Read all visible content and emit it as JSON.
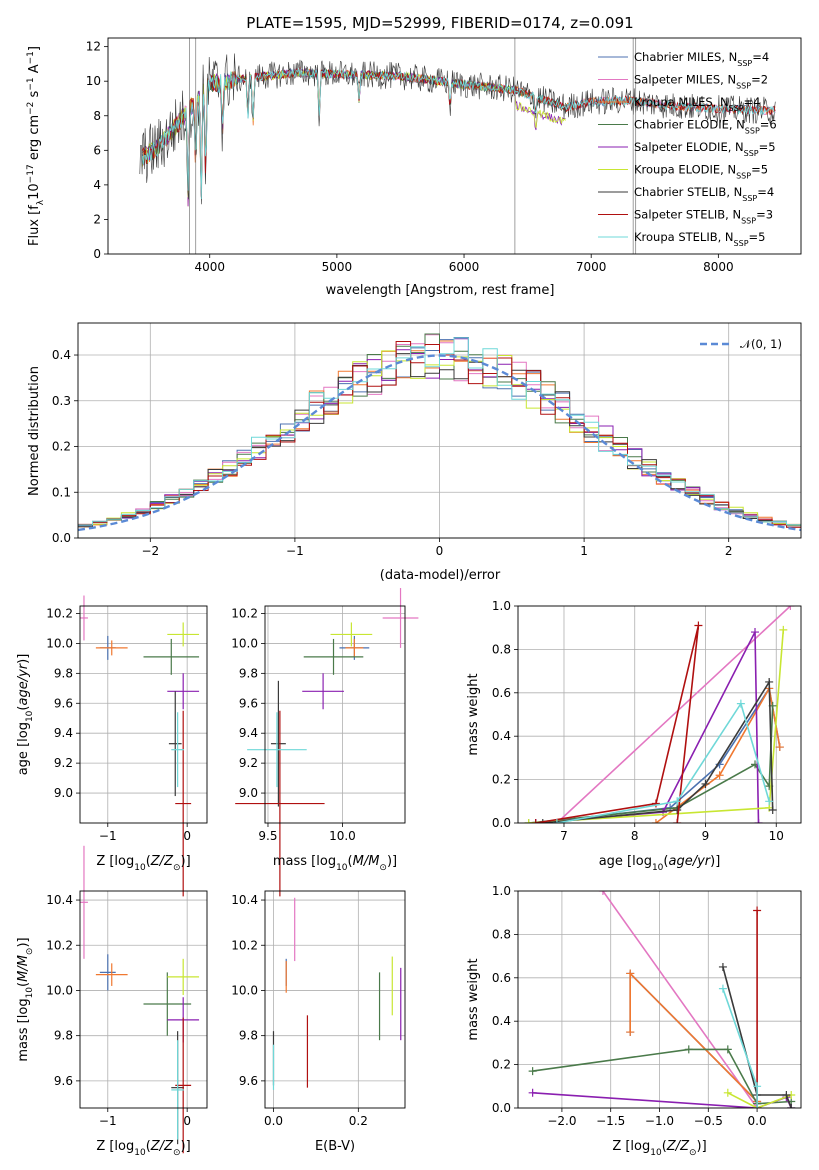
{
  "title": "PLATE=1595, MJD=52999, FIBERID=0174, z=0.091",
  "models": [
    {
      "label": "Chabrier MILES, N",
      "sub": "SSP",
      "suffix": "=4",
      "color": "#4c72b0"
    },
    {
      "label": "Salpeter MILES, N",
      "sub": "SSP",
      "suffix": "=2",
      "color": "#e377c2"
    },
    {
      "label": "Kroupa MILES, N",
      "sub": "SSP",
      "suffix": "=4",
      "color": "#f07830"
    },
    {
      "label": "Chabrier ELODIE, N",
      "sub": "SSP",
      "suffix": "=6",
      "color": "#4a7a4a"
    },
    {
      "label": "Salpeter ELODIE, N",
      "sub": "SSP",
      "suffix": "=5",
      "color": "#8a1fb0"
    },
    {
      "label": "Kroupa ELODIE, N",
      "sub": "SSP",
      "suffix": "=5",
      "color": "#c8e632"
    },
    {
      "label": "Chabrier STELIB, N",
      "sub": "SSP",
      "suffix": "=4",
      "color": "#3a3a3a"
    },
    {
      "label": "Salpeter STELIB, N",
      "sub": "SSP",
      "suffix": "=3",
      "color": "#b01010"
    },
    {
      "label": "Kroupa STELIB, N",
      "sub": "SSP",
      "suffix": "=5",
      "color": "#6fd8d8"
    }
  ],
  "chart_data": [
    {
      "id": "spectrum",
      "type": "line",
      "xlabel": "wavelength [Angstrom, rest frame]",
      "ylabel": "Flux [f_λ 10^-17 erg cm^-2 s^-1 A^-1]",
      "xlim": [
        3200,
        8650
      ],
      "ylim": [
        0,
        12.5
      ],
      "xticks": [
        4000,
        5000,
        6000,
        7000,
        8000
      ],
      "yticks": [
        0,
        2,
        4,
        6,
        8,
        10,
        12
      ],
      "series_envelope": [
        {
          "x": 3450,
          "y": 5.5
        },
        {
          "x": 3600,
          "y": 6.2
        },
        {
          "x": 3800,
          "y": 8.0
        },
        {
          "x": 4000,
          "y": 9.8
        },
        {
          "x": 4300,
          "y": 10.2
        },
        {
          "x": 4700,
          "y": 10.5
        },
        {
          "x": 5000,
          "y": 10.4
        },
        {
          "x": 5500,
          "y": 10.3
        },
        {
          "x": 6000,
          "y": 9.8
        },
        {
          "x": 6400,
          "y": 9.5
        },
        {
          "x": 6800,
          "y": 8.5
        },
        {
          "x": 7000,
          "y": 8.8
        },
        {
          "x": 7300,
          "y": 8.9
        },
        {
          "x": 7600,
          "y": 8.6
        },
        {
          "x": 8000,
          "y": 8.4
        },
        {
          "x": 8400,
          "y": 8.3
        }
      ],
      "grid": false,
      "legend_position": "top-right"
    },
    {
      "id": "residuals",
      "type": "histogram",
      "xlabel": "(data-model)/error",
      "ylabel": "Normed distribution",
      "xlim": [
        -2.5,
        2.5
      ],
      "ylim": [
        0,
        0.47
      ],
      "xticks": [
        -2,
        -1,
        0,
        1,
        2
      ],
      "yticks": [
        0.0,
        0.1,
        0.2,
        0.3,
        0.4
      ],
      "reference": {
        "name": "𝒩(0, 1)",
        "mean": 0,
        "sigma": 1
      },
      "bin_width": 0.1,
      "grid": true,
      "legend_position": "top-right"
    },
    {
      "id": "age-vs-Z",
      "type": "errorbar",
      "xlabel": "Z [log10(Z/Z⊙)]",
      "ylabel": "age [log10(age/yr)]",
      "xlim": [
        -1.35,
        0.25
      ],
      "ylim": [
        8.8,
        10.25
      ],
      "xticks": [
        -1,
        0
      ],
      "yticks": [
        9.0,
        9.2,
        9.4,
        9.6,
        9.8,
        10.0,
        10.2
      ],
      "points": [
        {
          "model": 0,
          "x": -1.0,
          "y": 9.97,
          "xerr": 0.1,
          "yerr": 0.08
        },
        {
          "model": 1,
          "x": -1.3,
          "y": 10.17,
          "xerr": 0.05,
          "yerr": 0.15
        },
        {
          "model": 2,
          "x": -0.95,
          "y": 9.97,
          "xerr": 0.2,
          "yerr": 0.05
        },
        {
          "model": 3,
          "x": -0.2,
          "y": 9.91,
          "xerr": 0.35,
          "yerr": 0.12
        },
        {
          "model": 4,
          "x": -0.05,
          "y": 9.68,
          "xerr": 0.2,
          "yerr": 0.12
        },
        {
          "model": 5,
          "x": -0.05,
          "y": 10.06,
          "xerr": 0.2,
          "yerr": 0.08
        },
        {
          "model": 6,
          "x": -0.15,
          "y": 9.33,
          "xerr": 0.08,
          "yerr": 0.35
        },
        {
          "model": 7,
          "x": -0.05,
          "y": 8.93,
          "xerr": 0.1,
          "yerr": 0.62
        },
        {
          "model": 8,
          "x": -0.12,
          "y": 9.29,
          "xerr": 0.08,
          "yerr": 0.25
        }
      ]
    },
    {
      "id": "age-vs-mass",
      "type": "errorbar",
      "xlabel": "mass [log10(M/M⊙)]",
      "ylabel": "",
      "xlim": [
        9.48,
        10.42
      ],
      "ylim": [
        8.8,
        10.25
      ],
      "xticks": [
        9.5,
        10.0
      ],
      "yticks": [
        9.0,
        9.2,
        9.4,
        9.6,
        9.8,
        10.0,
        10.2
      ],
      "points": [
        {
          "model": 0,
          "x": 10.08,
          "y": 9.97,
          "xerr": 0.1,
          "yerr": 0.08
        },
        {
          "model": 1,
          "x": 10.39,
          "y": 10.17,
          "xerr": 0.12,
          "yerr": 0.2
        },
        {
          "model": 2,
          "x": 10.08,
          "y": 9.97,
          "xerr": 0.06,
          "yerr": 0.06
        },
        {
          "model": 3,
          "x": 9.94,
          "y": 9.91,
          "xerr": 0.2,
          "yerr": 0.12
        },
        {
          "model": 4,
          "x": 9.87,
          "y": 9.68,
          "xerr": 0.14,
          "yerr": 0.12
        },
        {
          "model": 5,
          "x": 10.06,
          "y": 10.06,
          "xerr": 0.14,
          "yerr": 0.08
        },
        {
          "model": 6,
          "x": 9.57,
          "y": 9.33,
          "xerr": 0.05,
          "yerr": 0.42
        },
        {
          "model": 7,
          "x": 9.58,
          "y": 8.93,
          "xerr": 0.3,
          "yerr": 0.62
        },
        {
          "model": 8,
          "x": 9.56,
          "y": 9.29,
          "xerr": 0.2,
          "yerr": 0.25
        }
      ]
    },
    {
      "id": "massweight-vs-age",
      "type": "line",
      "xlabel": "age [log10(age/yr)]",
      "ylabel": "mass weight",
      "xlim": [
        6.35,
        10.35
      ],
      "ylim": [
        0,
        1
      ],
      "xticks": [
        7,
        8,
        9,
        10
      ],
      "yticks": [
        0.0,
        0.2,
        0.4,
        0.6,
        0.8,
        1.0
      ],
      "grid": true,
      "series": [
        {
          "model": 0,
          "points": [
            [
              6.6,
              0.0
            ],
            [
              8.5,
              0.07
            ],
            [
              9.2,
              0.27
            ],
            [
              9.9,
              0.62
            ],
            [
              10.05,
              0.35
            ]
          ]
        },
        {
          "model": 1,
          "points": [
            [
              6.9,
              0.0
            ],
            [
              10.2,
              1.0
            ]
          ]
        },
        {
          "model": 2,
          "points": [
            [
              8.3,
              0.0
            ],
            [
              9.2,
              0.22
            ],
            [
              9.9,
              0.62
            ],
            [
              10.05,
              0.35
            ]
          ]
        },
        {
          "model": 3,
          "points": [
            [
              6.5,
              0.0
            ],
            [
              8.6,
              0.07
            ],
            [
              9.7,
              0.27
            ],
            [
              9.9,
              0.17
            ],
            [
              9.95,
              0.54
            ]
          ]
        },
        {
          "model": 4,
          "points": [
            [
              6.6,
              0.0
            ],
            [
              8.4,
              0.05
            ],
            [
              9.7,
              0.88
            ],
            [
              9.75,
              0.0
            ]
          ]
        },
        {
          "model": 5,
          "points": [
            [
              6.5,
              0.0
            ],
            [
              9.9,
              0.07
            ],
            [
              10.1,
              0.89
            ]
          ]
        },
        {
          "model": 6,
          "points": [
            [
              6.7,
              0.0
            ],
            [
              8.6,
              0.06
            ],
            [
              9.0,
              0.18
            ],
            [
              9.9,
              0.65
            ],
            [
              9.95,
              0.06
            ]
          ]
        },
        {
          "model": 7,
          "points": [
            [
              6.6,
              0.0
            ],
            [
              8.3,
              0.09
            ],
            [
              8.9,
              0.91
            ],
            [
              8.6,
              0.0
            ]
          ]
        },
        {
          "model": 8,
          "points": [
            [
              6.9,
              0.0
            ],
            [
              8.6,
              0.1
            ],
            [
              9.5,
              0.55
            ],
            [
              9.9,
              0.1
            ]
          ]
        }
      ]
    },
    {
      "id": "mass-vs-Z",
      "type": "errorbar",
      "xlabel": "Z [log10(Z/Z⊙)]",
      "ylabel": "mass [log10(M/M⊙)]",
      "xlim": [
        -1.35,
        0.25
      ],
      "ylim": [
        9.48,
        10.44
      ],
      "xticks": [
        -1,
        0
      ],
      "yticks": [
        9.6,
        9.8,
        10.0,
        10.2,
        10.4
      ],
      "points": [
        {
          "model": 0,
          "x": -1.0,
          "y": 10.08,
          "xerr": 0.1,
          "yerr": 0.08
        },
        {
          "model": 1,
          "x": -1.3,
          "y": 10.39,
          "xerr": 0.05,
          "yerr": 0.25
        },
        {
          "model": 2,
          "x": -0.95,
          "y": 10.07,
          "xerr": 0.2,
          "yerr": 0.05
        },
        {
          "model": 3,
          "x": -0.25,
          "y": 9.94,
          "xerr": 0.3,
          "yerr": 0.14
        },
        {
          "model": 4,
          "x": -0.05,
          "y": 9.87,
          "xerr": 0.2,
          "yerr": 0.1
        },
        {
          "model": 5,
          "x": -0.05,
          "y": 10.06,
          "xerr": 0.2,
          "yerr": 0.08
        },
        {
          "model": 6,
          "x": -0.12,
          "y": 9.57,
          "xerr": 0.08,
          "yerr": 0.25
        },
        {
          "model": 7,
          "x": -0.05,
          "y": 9.58,
          "xerr": 0.1,
          "yerr": 0.3
        },
        {
          "model": 8,
          "x": -0.12,
          "y": 9.56,
          "xerr": 0.08,
          "yerr": 0.22
        }
      ]
    },
    {
      "id": "mass-vs-ebv",
      "type": "errorbar",
      "xlabel": "E(B-V)",
      "ylabel": "",
      "xlim": [
        -0.02,
        0.31
      ],
      "ylim": [
        9.48,
        10.44
      ],
      "xticks": [
        0.0,
        0.2
      ],
      "yticks": [
        9.6,
        9.8,
        10.0,
        10.2,
        10.4
      ],
      "points": [
        {
          "model": 0,
          "x": 0.03,
          "y": 10.08,
          "xerr": 0,
          "yerr": 0.06
        },
        {
          "model": 1,
          "x": 0.05,
          "y": 10.27,
          "xerr": 0,
          "yerr": 0.14
        },
        {
          "model": 2,
          "x": 0.03,
          "y": 10.06,
          "xerr": 0,
          "yerr": 0.07
        },
        {
          "model": 3,
          "x": 0.25,
          "y": 9.93,
          "xerr": 0,
          "yerr": 0.15
        },
        {
          "model": 4,
          "x": 0.3,
          "y": 9.94,
          "xerr": 0,
          "yerr": 0.16
        },
        {
          "model": 5,
          "x": 0.28,
          "y": 10.02,
          "xerr": 0,
          "yerr": 0.13
        },
        {
          "model": 6,
          "x": 0.0,
          "y": 9.7,
          "xerr": 0,
          "yerr": 0.12
        },
        {
          "model": 7,
          "x": 0.08,
          "y": 9.73,
          "xerr": 0,
          "yerr": 0.16
        },
        {
          "model": 8,
          "x": 0.0,
          "y": 9.66,
          "xerr": 0,
          "yerr": 0.1
        }
      ]
    },
    {
      "id": "massweight-vs-Z",
      "type": "line",
      "xlabel": "Z [log10(Z/Z⊙)]",
      "ylabel": "mass weight",
      "xlim": [
        -2.45,
        0.45
      ],
      "ylim": [
        0,
        1
      ],
      "xticks": [
        -2.0,
        -1.5,
        -1.0,
        -0.5,
        0.0
      ],
      "yticks": [
        0.0,
        0.2,
        0.4,
        0.6,
        0.8,
        1.0
      ],
      "grid": true,
      "series": [
        {
          "model": 0,
          "points": [
            [
              -1.3,
              0.35
            ],
            [
              -1.3,
              0.62
            ],
            [
              0.0,
              0.03
            ],
            [
              0.0,
              0.0
            ]
          ]
        },
        {
          "model": 1,
          "points": [
            [
              -1.58,
              1.0
            ],
            [
              0.0,
              0.0
            ]
          ]
        },
        {
          "model": 2,
          "points": [
            [
              -1.3,
              0.35
            ],
            [
              -1.3,
              0.62
            ],
            [
              0.0,
              0.03
            ],
            [
              0.0,
              0.0
            ]
          ]
        },
        {
          "model": 3,
          "points": [
            [
              -2.3,
              0.17
            ],
            [
              -0.7,
              0.27
            ],
            [
              -0.3,
              0.27
            ],
            [
              0.0,
              0.02
            ],
            [
              0.35,
              0.03
            ]
          ]
        },
        {
          "model": 4,
          "points": [
            [
              -2.3,
              0.07
            ],
            [
              0.0,
              0.0
            ],
            [
              0.3,
              0.05
            ],
            [
              0.35,
              0.0
            ]
          ]
        },
        {
          "model": 5,
          "points": [
            [
              -0.3,
              0.07
            ],
            [
              0.0,
              0.0
            ],
            [
              0.35,
              0.06
            ]
          ]
        },
        {
          "model": 6,
          "points": [
            [
              -0.35,
              0.65
            ],
            [
              0.0,
              0.06
            ],
            [
              0.3,
              0.06
            ],
            [
              0.35,
              0.0
            ]
          ]
        },
        {
          "model": 7,
          "points": [
            [
              0.0,
              0.0
            ],
            [
              0.0,
              0.91
            ],
            [
              0.0,
              0.0
            ]
          ]
        },
        {
          "model": 8,
          "points": [
            [
              -0.35,
              0.55
            ],
            [
              0.0,
              0.1
            ],
            [
              0.0,
              0.0
            ]
          ]
        }
      ]
    }
  ]
}
